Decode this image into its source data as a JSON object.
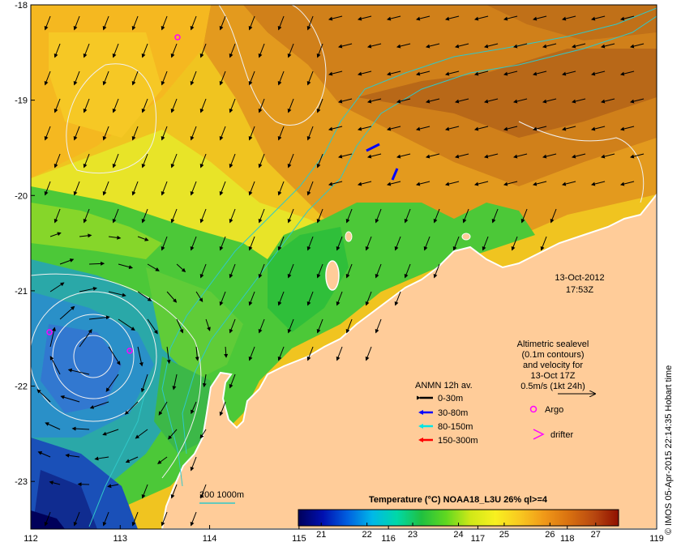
{
  "map": {
    "x_axis": {
      "labels": [
        "112",
        "113",
        "114",
        "115",
        "116",
        "117",
        "118",
        "119"
      ],
      "values": [
        112,
        113,
        114,
        115,
        116,
        117,
        118,
        119
      ]
    },
    "y_axis": {
      "labels": [
        "-18",
        "-19",
        "-20",
        "-21",
        "-22",
        "-23"
      ],
      "values": [
        -18,
        -19,
        -20,
        -21,
        -22,
        -23
      ]
    },
    "extent": {
      "lon": [
        112,
        119
      ],
      "lat": [
        -23.5,
        -18
      ]
    }
  },
  "date_label": {
    "date": "13-Oct-2012",
    "time": "17:53Z"
  },
  "altimetry_note": {
    "lines": [
      "Altimetric sealevel",
      "(0.1m contours)",
      "and velocity for",
      "13-Oct 17Z"
    ],
    "scale_label": "0.5m/s (1kt 24h)"
  },
  "legend": {
    "title": "ANMN 12h av.",
    "items": [
      {
        "label": "0-30m",
        "color": "#000000"
      },
      {
        "label": "30-80m",
        "color": "#0000ff"
      },
      {
        "label": "80-150m",
        "color": "#00e5e5"
      },
      {
        "label": "150-300m",
        "color": "#ff0000"
      }
    ],
    "argo_label": "Argo",
    "argo_color": "#ff00ff",
    "drifter_label": "drifter",
    "drifter_color": "#ff00ff"
  },
  "bathymetry_label": "200  1000m",
  "colorbar": {
    "title": "Temperature (°C) NOAA18_L3U 26% ql>=4",
    "ticks": [
      "21",
      "22",
      "23",
      "24",
      "25",
      "26",
      "27"
    ],
    "tick_values": [
      21,
      22,
      23,
      24,
      25,
      26,
      27
    ],
    "range": [
      20.5,
      27.5
    ],
    "stops": [
      "#00005a",
      "#0010b0",
      "#0060e0",
      "#00b8e8",
      "#00d8a8",
      "#20c040",
      "#60d820",
      "#d0e818",
      "#f8f020",
      "#f8c820",
      "#f09818",
      "#d87010",
      "#b84810",
      "#901000"
    ]
  },
  "credit": "© IMOS 05-Apr-2015 22:14:35 Hobart time",
  "colors": {
    "land": "#ffcc99",
    "coast": "#ffffff",
    "contour": "#f0f0f0",
    "bathy": "#30c8c8"
  }
}
